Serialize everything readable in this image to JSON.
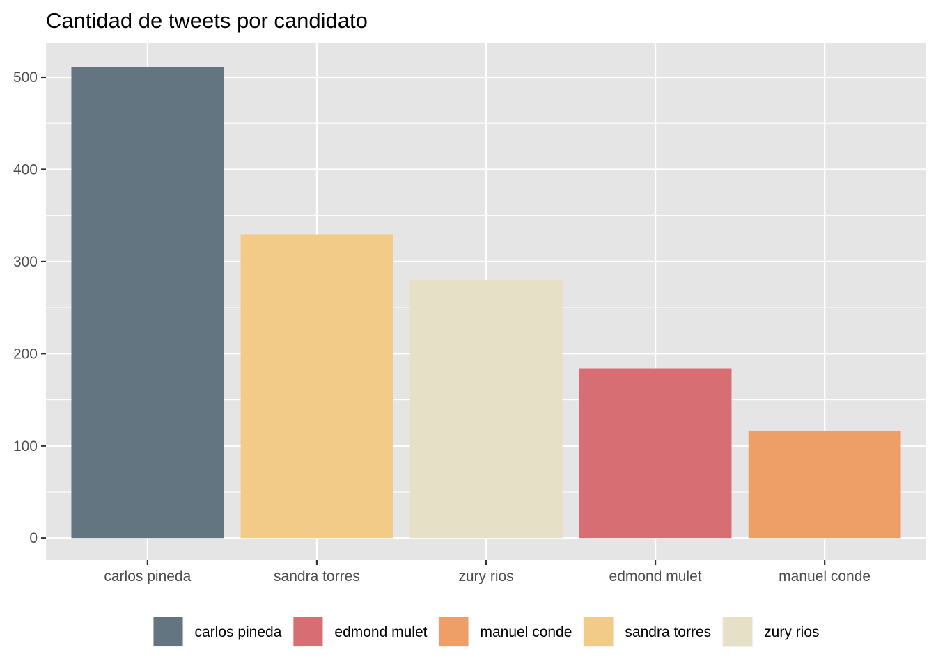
{
  "chart_data": {
    "type": "bar",
    "title": "Cantidad de tweets por candidato",
    "xlabel": "",
    "ylabel": "",
    "categories": [
      "carlos pineda",
      "sandra torres",
      "zury rios",
      "edmond mulet",
      "manuel conde"
    ],
    "values": [
      511,
      329,
      280,
      184,
      116
    ],
    "ylim": [
      -24,
      537
    ],
    "yticks": [
      0,
      100,
      200,
      300,
      400,
      500
    ],
    "yminor": [
      50,
      150,
      250,
      350,
      450
    ],
    "grid": true,
    "legend_position": "bottom",
    "colors": {
      "carlos pineda": "#5f717e",
      "sandra torres": "#f2c984",
      "zury rios": "#e5e0c4",
      "edmond mulet": "#d6696e",
      "manuel conde": "#ed9b62"
    },
    "legend": [
      "carlos pineda",
      "edmond mulet",
      "manuel conde",
      "sandra torres",
      "zury rios"
    ],
    "panel_background": "#e5e5e5",
    "grid_color": "#ffffff"
  }
}
